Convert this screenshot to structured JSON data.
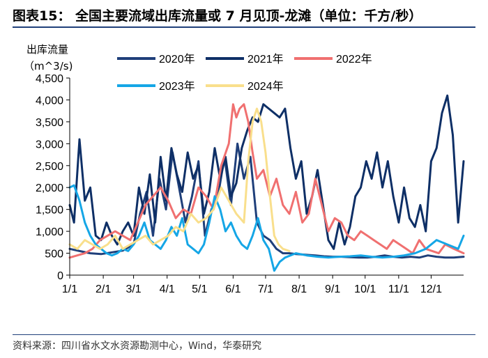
{
  "header": {
    "title": "图表15：  全国主要流域出库流量或 7 月见顶-龙滩（单位：千方/秒）"
  },
  "footer": {
    "source": "资料来源：四川省水文水资源勘测中心，Wind，华泰研究"
  },
  "chart_data": {
    "type": "line",
    "title": "全国主要流域出库流量或 7 月见顶-龙滩（单位：千方/秒）",
    "ylabel_line1": "出库流量",
    "ylabel_line2": "（m^3/s)",
    "xlabel": "",
    "ylim": [
      0,
      4500
    ],
    "yticks": [
      0,
      500,
      1000,
      1500,
      2000,
      2500,
      3000,
      3500,
      4000,
      4500
    ],
    "ytick_labels": [
      "0",
      "500",
      "1,000",
      "1,500",
      "2,000",
      "2,500",
      "3,000",
      "3,500",
      "4,000",
      "4,500"
    ],
    "xlim": [
      1,
      365
    ],
    "xticks": [
      1,
      32,
      60,
      91,
      121,
      152,
      182,
      213,
      244,
      274,
      305,
      335
    ],
    "xtick_labels": [
      "1/1",
      "2/1",
      "3/1",
      "4/1",
      "5/1",
      "6/1",
      "7/1",
      "8/1",
      "9/1",
      "10/1",
      "11/1",
      "12/1"
    ],
    "grid": false,
    "legend_position": "top",
    "series": [
      {
        "name": "2020年",
        "color": "#1f3f7a",
        "x": [
          1,
          10,
          20,
          30,
          40,
          50,
          60,
          66,
          72,
          78,
          84,
          90,
          96,
          102,
          108,
          114,
          120,
          126,
          132,
          138,
          144,
          150,
          156,
          162,
          168,
          174,
          180,
          186,
          192,
          198,
          204,
          210,
          216,
          222,
          228,
          236,
          244,
          252,
          260,
          268,
          276,
          284,
          292,
          300,
          308,
          316,
          324,
          332,
          340,
          348,
          356,
          365
        ],
        "values": [
          600,
          550,
          500,
          480,
          520,
          560,
          700,
          1400,
          1900,
          900,
          2200,
          1500,
          2800,
          2000,
          1200,
          1800,
          2600,
          900,
          1500,
          1800,
          2700,
          1600,
          3000,
          2200,
          2700,
          1200,
          900,
          800,
          600,
          500,
          500,
          480,
          470,
          460,
          450,
          430,
          420,
          420,
          410,
          400,
          400,
          420,
          450,
          420,
          400,
          420,
          400,
          450,
          420,
          400,
          400,
          420
        ]
      },
      {
        "name": "2021年",
        "color": "#0e2f66",
        "x": [
          1,
          5,
          10,
          15,
          20,
          25,
          30,
          35,
          40,
          45,
          50,
          55,
          60,
          65,
          70,
          75,
          80,
          85,
          90,
          95,
          100,
          105,
          110,
          115,
          120,
          125,
          130,
          135,
          140,
          145,
          150,
          155,
          160,
          165,
          170,
          175,
          180,
          185,
          190,
          195,
          200,
          205,
          210,
          215,
          220,
          225,
          230,
          235,
          240,
          245,
          250,
          255,
          260,
          265,
          270,
          275,
          280,
          285,
          290,
          295,
          300,
          305,
          310,
          315,
          320,
          325,
          330,
          335,
          340,
          345,
          350,
          355,
          360,
          365
        ],
        "values": [
          1600,
          1200,
          3100,
          1700,
          2000,
          900,
          800,
          1200,
          900,
          700,
          1000,
          1200,
          900,
          2000,
          1400,
          2300,
          1200,
          2700,
          1700,
          2900,
          2300,
          1900,
          2800,
          2200,
          2500,
          1400,
          1900,
          2900,
          2200,
          2700,
          1800,
          2100,
          2900,
          3300,
          3600,
          3500,
          3900,
          3800,
          3700,
          3600,
          3800,
          2900,
          2200,
          2600,
          1400,
          1800,
          2400,
          1600,
          800,
          600,
          1200,
          700,
          1100,
          1800,
          2000,
          2600,
          2200,
          2800,
          2000,
          2600,
          1800,
          1200,
          2000,
          1300,
          1100,
          1600,
          1000,
          2600,
          2900,
          3700,
          4100,
          3200,
          1200,
          2600
        ]
      },
      {
        "name": "2022年",
        "color": "#f07070",
        "x": [
          1,
          8,
          15,
          22,
          29,
          36,
          43,
          50,
          57,
          64,
          71,
          78,
          85,
          92,
          99,
          106,
          113,
          120,
          127,
          134,
          141,
          148,
          152,
          155,
          158,
          162,
          166,
          170,
          174,
          180,
          186,
          192,
          198,
          204,
          210,
          216,
          222,
          228,
          234,
          240,
          246,
          252,
          258,
          264,
          270,
          276,
          282,
          288,
          294,
          300,
          306,
          312,
          318,
          324,
          330,
          336,
          342,
          348,
          356,
          365
        ],
        "values": [
          400,
          450,
          500,
          600,
          800,
          900,
          1000,
          900,
          800,
          1200,
          1600,
          1800,
          2000,
          1700,
          1300,
          1500,
          1400,
          2000,
          1800,
          1500,
          2500,
          3000,
          3900,
          3600,
          3800,
          3900,
          3500,
          2800,
          2200,
          2400,
          1800,
          2200,
          1600,
          1400,
          1900,
          1200,
          1400,
          2200,
          1600,
          1000,
          1300,
          1200,
          900,
          800,
          1000,
          900,
          800,
          700,
          600,
          800,
          700,
          600,
          500,
          800,
          600,
          550,
          500,
          700,
          600,
          500
        ]
      },
      {
        "name": "2023年",
        "color": "#15a6e6",
        "x": [
          1,
          5,
          10,
          15,
          20,
          25,
          30,
          35,
          40,
          45,
          50,
          55,
          60,
          65,
          70,
          75,
          80,
          85,
          90,
          95,
          100,
          105,
          110,
          115,
          120,
          125,
          130,
          135,
          140,
          145,
          150,
          155,
          160,
          165,
          170,
          175,
          180,
          185,
          190,
          195,
          200,
          210,
          220,
          230,
          240,
          250,
          260,
          270,
          280,
          290,
          300,
          310,
          320,
          330,
          340,
          350,
          360,
          365
        ],
        "values": [
          2000,
          2050,
          1700,
          1200,
          900,
          700,
          600,
          500,
          450,
          500,
          600,
          550,
          700,
          900,
          1200,
          800,
          700,
          600,
          800,
          1100,
          900,
          1300,
          700,
          600,
          500,
          700,
          1200,
          1800,
          1500,
          1000,
          1200,
          900,
          700,
          600,
          900,
          1300,
          800,
          600,
          100,
          300,
          400,
          500,
          450,
          420,
          400,
          420,
          430,
          450,
          420,
          400,
          420,
          450,
          500,
          600,
          800,
          700,
          600,
          900
        ]
      },
      {
        "name": "2024年",
        "color": "#f9df8c",
        "x": [
          1,
          8,
          15,
          22,
          29,
          36,
          43,
          50,
          57,
          64,
          71,
          78,
          85,
          92,
          99,
          106,
          113,
          120,
          127,
          134,
          141,
          148,
          155,
          162,
          166,
          170,
          174,
          178,
          182,
          186,
          190,
          194,
          198,
          204
        ],
        "values": [
          700,
          600,
          800,
          700,
          600,
          700,
          900,
          600,
          700,
          800,
          900,
          700,
          800,
          900,
          1100,
          1000,
          1400,
          1200,
          1300,
          1500,
          2000,
          1700,
          1400,
          1200,
          2600,
          3500,
          3800,
          3500,
          2800,
          1800,
          900,
          700,
          600,
          550
        ]
      }
    ]
  }
}
